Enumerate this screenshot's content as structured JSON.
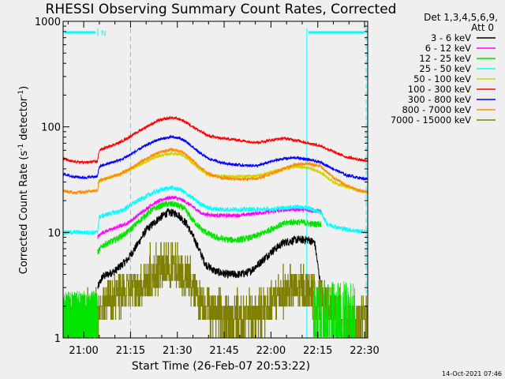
{
  "chart_data": {
    "type": "line",
    "title": "RHESSI Observing Summary Count Rates, Corrected",
    "xlabel": "Start Time (26-Feb-07 20:53:22)",
    "ylabel": "Corrected Count Rate (s-1 detector-1)",
    "ylabel_parts": {
      "a": "Corrected Count Rate (s",
      "sup1": "-1",
      "b": " detector",
      "sup2": "-1",
      "c": ")"
    },
    "yscale": "log",
    "ylim": [
      1,
      1000
    ],
    "xlim_min": [
      1253.4,
      1351
    ],
    "y_ticks": [
      {
        "value": 1,
        "label": "1"
      },
      {
        "value": 10,
        "label": "10"
      },
      {
        "value": 100,
        "label": "100"
      },
      {
        "value": 1000,
        "label": "1000"
      }
    ],
    "x_ticks": [
      {
        "min": 1260,
        "label": "21:00"
      },
      {
        "min": 1275,
        "label": "21:15"
      },
      {
        "min": 1290,
        "label": "21:30"
      },
      {
        "min": 1305,
        "label": "21:45"
      },
      {
        "min": 1320,
        "label": "22:00"
      },
      {
        "min": 1335,
        "label": "22:15"
      },
      {
        "min": 1350,
        "label": "22:30"
      }
    ],
    "legend_header": [
      "Det 1,3,4,5,6,9,",
      "Att 0"
    ],
    "legend_position": "right",
    "night_marker": "N",
    "shading": {
      "night_end_min": 1264.5,
      "day_start_min": 1275.0,
      "saa_start_min": 1331.5,
      "eclipse_start_min": 1350.5
    },
    "series": [
      {
        "name": "3 - 6 keV",
        "color": "#000000",
        "noise": 0.09,
        "start": 1264.5,
        "end": 1336,
        "points": [
          [
            1264.5,
            3
          ],
          [
            1266,
            3.8
          ],
          [
            1270,
            4.3
          ],
          [
            1274,
            5.5
          ],
          [
            1277,
            7.5
          ],
          [
            1280,
            10.5
          ],
          [
            1284,
            13.5
          ],
          [
            1287,
            15.5
          ],
          [
            1290,
            15
          ],
          [
            1293,
            12
          ],
          [
            1296,
            8
          ],
          [
            1299,
            5
          ],
          [
            1302,
            4.3
          ],
          [
            1306,
            4
          ],
          [
            1310,
            4
          ],
          [
            1313,
            4.2
          ],
          [
            1316,
            5
          ],
          [
            1320,
            6.5
          ],
          [
            1324,
            8
          ],
          [
            1328,
            8.5
          ],
          [
            1332,
            8.5
          ],
          [
            1334,
            8
          ],
          [
            1336,
            3
          ]
        ]
      },
      {
        "name": "6 - 12 keV",
        "color": "#ff00ff",
        "noise": 0.04,
        "start": 1264.5,
        "end": 1336,
        "points": [
          [
            1264.5,
            9
          ],
          [
            1266,
            10
          ],
          [
            1270,
            11
          ],
          [
            1274,
            12.2
          ],
          [
            1278,
            15
          ],
          [
            1282,
            18.5
          ],
          [
            1286,
            21
          ],
          [
            1289,
            21.5
          ],
          [
            1292,
            20
          ],
          [
            1295,
            17.5
          ],
          [
            1298,
            15
          ],
          [
            1302,
            14.5
          ],
          [
            1306,
            14.5
          ],
          [
            1310,
            14.5
          ],
          [
            1314,
            15
          ],
          [
            1318,
            15.5
          ],
          [
            1322,
            16
          ],
          [
            1326,
            16.5
          ],
          [
            1330,
            16.5
          ],
          [
            1333,
            16
          ],
          [
            1336,
            16
          ]
        ]
      },
      {
        "name": "12 - 25 keV",
        "color": "#00e400",
        "noise": 0.07,
        "start": 1264.5,
        "end": 1336,
        "points": [
          [
            1264.5,
            6.5
          ],
          [
            1266,
            7.5
          ],
          [
            1270,
            8.5
          ],
          [
            1274,
            10
          ],
          [
            1278,
            13
          ],
          [
            1282,
            16.5
          ],
          [
            1286,
            18.5
          ],
          [
            1289,
            18.5
          ],
          [
            1292,
            17
          ],
          [
            1295,
            13
          ],
          [
            1298,
            10.5
          ],
          [
            1302,
            9
          ],
          [
            1306,
            8.5
          ],
          [
            1310,
            8.5
          ],
          [
            1314,
            9
          ],
          [
            1318,
            10
          ],
          [
            1322,
            11.5
          ],
          [
            1326,
            12.5
          ],
          [
            1330,
            12.5
          ],
          [
            1333,
            12
          ],
          [
            1336,
            12
          ]
        ]
      },
      {
        "name": "25 - 50 keV",
        "color": "#00ffff",
        "noise": 0.05,
        "start": 1253.4,
        "end": 1351,
        "points": [
          [
            1253.4,
            10
          ],
          [
            1258,
            10
          ],
          [
            1262,
            10
          ],
          [
            1264.4,
            10
          ],
          [
            1265,
            14
          ],
          [
            1268,
            15
          ],
          [
            1272,
            16
          ],
          [
            1276,
            19
          ],
          [
            1280,
            22
          ],
          [
            1284,
            25
          ],
          [
            1288,
            26.5
          ],
          [
            1291,
            25.5
          ],
          [
            1294,
            22
          ],
          [
            1297,
            19
          ],
          [
            1300,
            17
          ],
          [
            1304,
            16.5
          ],
          [
            1308,
            16.5
          ],
          [
            1312,
            16.5
          ],
          [
            1316,
            16.5
          ],
          [
            1320,
            16.5
          ],
          [
            1324,
            17
          ],
          [
            1328,
            17.5
          ],
          [
            1332,
            17
          ],
          [
            1336,
            15.5
          ],
          [
            1338,
            12
          ],
          [
            1342,
            11
          ],
          [
            1346,
            10.5
          ],
          [
            1351,
            10
          ]
        ]
      },
      {
        "name": "50 - 100 keV",
        "color": "#d2d200",
        "noise": 0.035,
        "start": 1264.5,
        "end": 1351,
        "points": [
          [
            1264.5,
            30
          ],
          [
            1268,
            33
          ],
          [
            1272,
            36
          ],
          [
            1276,
            41
          ],
          [
            1280,
            47
          ],
          [
            1284,
            53
          ],
          [
            1288,
            56
          ],
          [
            1291,
            55
          ],
          [
            1294,
            48
          ],
          [
            1297,
            40
          ],
          [
            1300,
            35
          ],
          [
            1304,
            34
          ],
          [
            1308,
            34
          ],
          [
            1312,
            34
          ],
          [
            1316,
            34.5
          ],
          [
            1320,
            37
          ],
          [
            1324,
            40
          ],
          [
            1328,
            42
          ],
          [
            1332,
            41
          ],
          [
            1336,
            37
          ],
          [
            1340,
            30
          ],
          [
            1344,
            27
          ],
          [
            1348,
            25
          ],
          [
            1351,
            24
          ]
        ]
      },
      {
        "name": "100 - 300 keV",
        "color": "#ff0000",
        "noise": 0.03,
        "start": 1253.4,
        "end": 1351,
        "points": [
          [
            1253.4,
            50
          ],
          [
            1256,
            47
          ],
          [
            1260,
            46
          ],
          [
            1264.4,
            47
          ],
          [
            1265,
            60
          ],
          [
            1268,
            65
          ],
          [
            1272,
            72
          ],
          [
            1276,
            85
          ],
          [
            1280,
            100
          ],
          [
            1284,
            115
          ],
          [
            1288,
            122
          ],
          [
            1291,
            118
          ],
          [
            1294,
            105
          ],
          [
            1297,
            92
          ],
          [
            1300,
            82
          ],
          [
            1304,
            78
          ],
          [
            1308,
            76
          ],
          [
            1312,
            73
          ],
          [
            1316,
            71
          ],
          [
            1320,
            75
          ],
          [
            1324,
            78
          ],
          [
            1328,
            75
          ],
          [
            1332,
            70
          ],
          [
            1336,
            66
          ],
          [
            1340,
            58
          ],
          [
            1344,
            52
          ],
          [
            1348,
            49
          ],
          [
            1351,
            47
          ]
        ]
      },
      {
        "name": "300 - 800 keV",
        "color": "#0000ff",
        "noise": 0.03,
        "start": 1253.4,
        "end": 1351,
        "points": [
          [
            1253.4,
            36
          ],
          [
            1256,
            34
          ],
          [
            1260,
            33
          ],
          [
            1264.4,
            34
          ],
          [
            1265,
            42
          ],
          [
            1268,
            45
          ],
          [
            1272,
            49
          ],
          [
            1276,
            57
          ],
          [
            1280,
            67
          ],
          [
            1284,
            76
          ],
          [
            1288,
            80
          ],
          [
            1291,
            78
          ],
          [
            1294,
            68
          ],
          [
            1297,
            57
          ],
          [
            1300,
            50
          ],
          [
            1304,
            46
          ],
          [
            1308,
            44
          ],
          [
            1312,
            43
          ],
          [
            1316,
            43
          ],
          [
            1320,
            47
          ],
          [
            1324,
            50
          ],
          [
            1328,
            51
          ],
          [
            1332,
            49
          ],
          [
            1336,
            46
          ],
          [
            1340,
            40
          ],
          [
            1344,
            35
          ],
          [
            1348,
            33
          ],
          [
            1351,
            32
          ]
        ]
      },
      {
        "name": "800 - 7000 keV",
        "color": "#ff8c00",
        "noise": 0.035,
        "start": 1253.4,
        "end": 1351,
        "points": [
          [
            1253.4,
            25
          ],
          [
            1256,
            24
          ],
          [
            1260,
            24
          ],
          [
            1264.4,
            25
          ],
          [
            1265,
            31
          ],
          [
            1268,
            33
          ],
          [
            1272,
            36
          ],
          [
            1276,
            42
          ],
          [
            1280,
            50
          ],
          [
            1284,
            57
          ],
          [
            1288,
            61
          ],
          [
            1291,
            59
          ],
          [
            1294,
            51
          ],
          [
            1297,
            42
          ],
          [
            1300,
            36
          ],
          [
            1304,
            33
          ],
          [
            1308,
            32
          ],
          [
            1312,
            32
          ],
          [
            1316,
            32.5
          ],
          [
            1320,
            36
          ],
          [
            1324,
            40
          ],
          [
            1328,
            44
          ],
          [
            1332,
            45
          ],
          [
            1336,
            42
          ],
          [
            1340,
            33
          ],
          [
            1344,
            28
          ],
          [
            1348,
            25
          ],
          [
            1351,
            24
          ]
        ]
      },
      {
        "name": "7000 - 15000 keV",
        "color": "#808000",
        "noise": 0.0,
        "start": 1253.4,
        "end": 1351,
        "points": [
          [
            1253.4,
            1.5
          ],
          [
            1260,
            1.5
          ],
          [
            1264,
            1.6
          ],
          [
            1266,
            2
          ],
          [
            1270,
            2.4
          ],
          [
            1274,
            2.7
          ],
          [
            1278,
            3
          ],
          [
            1282,
            3.8
          ],
          [
            1286,
            4.8
          ],
          [
            1290,
            4.5
          ],
          [
            1294,
            3.2
          ],
          [
            1298,
            2.2
          ],
          [
            1302,
            1.7
          ],
          [
            1306,
            1.5
          ],
          [
            1310,
            1.5
          ],
          [
            1314,
            1.5
          ],
          [
            1318,
            1.8
          ],
          [
            1322,
            2.4
          ],
          [
            1326,
            2.8
          ],
          [
            1330,
            2.8
          ],
          [
            1334,
            2.5
          ],
          [
            1338,
            2.0
          ],
          [
            1342,
            1.6
          ],
          [
            1346,
            1.4
          ],
          [
            1351,
            1.4
          ]
        ]
      }
    ]
  },
  "timestamp": "14-Oct-2021 07:46"
}
